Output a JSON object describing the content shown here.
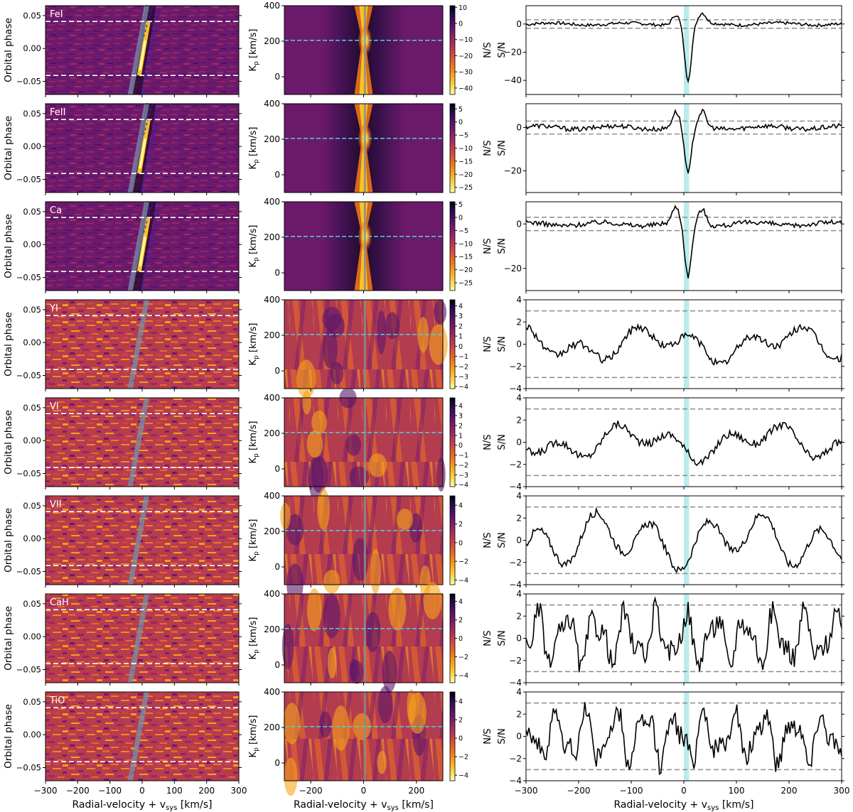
{
  "figure": {
    "rows": [
      {
        "species": "FeI",
        "cb_ticks": [
          10,
          0,
          -10,
          -20,
          -30,
          -40
        ],
        "cb_min": -44,
        "cb_max": 11,
        "ccf_ticks": [
          0,
          -20,
          -40
        ],
        "ccf_ylim": [
          -50,
          13
        ],
        "dip": -40,
        "strong": true
      },
      {
        "species": "FeII",
        "cb_ticks": [
          5,
          0,
          -5,
          -10,
          -15,
          -20,
          -25
        ],
        "cb_min": -27,
        "cb_max": 7,
        "ccf_ticks": [
          0,
          -20
        ],
        "ccf_ylim": [
          -30,
          11
        ],
        "dip": -22,
        "strong": true
      },
      {
        "species": "Ca",
        "cb_ticks": [
          5,
          0,
          -5,
          -10,
          -15,
          -20,
          -25
        ],
        "cb_min": -28,
        "cb_max": 6,
        "ccf_ticks": [
          0,
          -20
        ],
        "ccf_ylim": [
          -30,
          10
        ],
        "dip": -24,
        "strong": true
      },
      {
        "species": "YI",
        "cb_ticks": [
          4,
          3,
          2,
          1,
          0,
          -1,
          -2,
          -3,
          -4
        ],
        "cb_min": -4.2,
        "cb_max": 4.6,
        "ccf_ticks": [
          4,
          2,
          0,
          -2,
          -4
        ],
        "ccf_ylim": [
          -4,
          4
        ],
        "strong": false
      },
      {
        "species": "VI",
        "cb_ticks": [
          4,
          3,
          2,
          1,
          0,
          -1,
          -2,
          -3,
          -4
        ],
        "cb_min": -4.2,
        "cb_max": 4.8,
        "ccf_ticks": [
          4,
          2,
          0,
          -2,
          -4
        ],
        "ccf_ylim": [
          -4,
          4
        ],
        "strong": false
      },
      {
        "species": "VII",
        "cb_ticks": [
          4,
          2,
          0,
          -2,
          -4
        ],
        "cb_min": -4.5,
        "cb_max": 5,
        "ccf_ticks": [
          4,
          2,
          0,
          -2,
          -4
        ],
        "ccf_ylim": [
          -4,
          4
        ],
        "strong": false
      },
      {
        "species": "CaH",
        "cb_ticks": [
          4,
          2,
          0,
          -2,
          -4
        ],
        "cb_min": -4.8,
        "cb_max": 4.8,
        "ccf_ticks": [
          4,
          2,
          0,
          -2,
          -4
        ],
        "ccf_ylim": [
          -4,
          4
        ],
        "strong": false
      },
      {
        "species": "TiO",
        "cb_ticks": [
          4,
          2,
          0,
          -2,
          -4
        ],
        "cb_min": -4.6,
        "cb_max": 5,
        "ccf_ticks": [
          4,
          2,
          0,
          -2,
          -4
        ],
        "ccf_ylim": [
          -4,
          4
        ],
        "strong": false
      }
    ],
    "labels": {
      "orbital_phase": "Orbital phase",
      "kp_main": "K",
      "kp_sub": "p",
      "kp_unit": " [km/s]",
      "sn": "S/N",
      "rv_main": "Radial-velocity + v",
      "rv_sub": "sys",
      "rv_unit": " [km/s]"
    }
  },
  "chart_data": {
    "type": "heatmap",
    "x_range_left": [
      -300,
      300
    ],
    "x_range_middle": [
      -300,
      300
    ],
    "x_range_right": [
      -300,
      300
    ],
    "x_ticks_left": [
      -300,
      -200,
      -100,
      0,
      100,
      200,
      300
    ],
    "x_ticks_middle": [
      -200,
      0,
      200
    ],
    "x_ticks_right": [
      -300,
      -200,
      -100,
      0,
      100,
      200,
      300
    ],
    "phase_range": [
      -0.07,
      0.065
    ],
    "phase_ticks": [
      0.05,
      0.0,
      -0.05
    ],
    "transit_phase_limits": [
      -0.041,
      0.041
    ],
    "kp_range": [
      -100,
      400
    ],
    "kp_ticks": [
      400,
      200,
      0
    ],
    "kp_planet": 205,
    "sn_threshold": 3,
    "rv_band": [
      0,
      10
    ]
  }
}
